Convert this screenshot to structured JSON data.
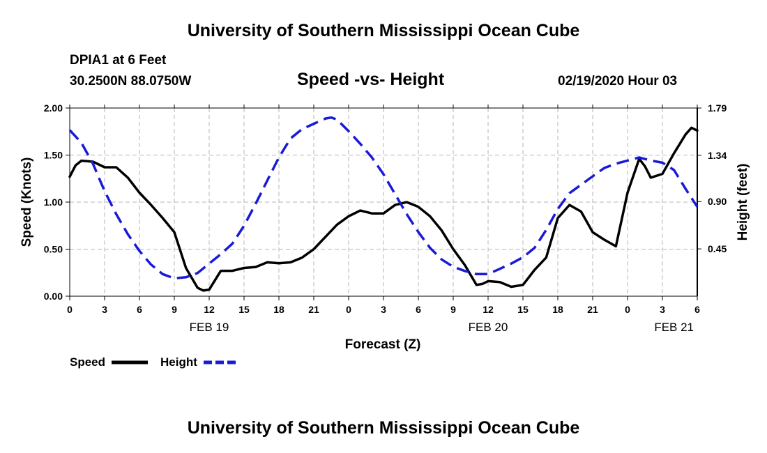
{
  "header": {
    "title": "University of Southern Mississippi Ocean Cube",
    "station": "DPIA1 at 6 Feet",
    "coords": "30.2500N 88.0750W",
    "chart_title": "Speed -vs- Height",
    "datetime": "02/19/2020 Hour 03"
  },
  "footer": {
    "title": "University of Southern Mississippi Ocean Cube"
  },
  "legend": {
    "speed_label": "Speed",
    "height_label": "Height"
  },
  "colors": {
    "speed": "#000000",
    "height": "#1a1ad6",
    "grid": "#b4b4b4"
  },
  "chart_data": {
    "type": "line",
    "title": "Speed -vs- Height",
    "xlabel": "Forecast (Z)",
    "ylabel": "Speed (Knots)",
    "y2label": "Height (feet)",
    "xlim": [
      0,
      54
    ],
    "ylim": [
      0,
      2.0
    ],
    "y2lim": [
      0,
      1.79
    ],
    "x_ticks": [
      0,
      3,
      6,
      9,
      12,
      15,
      18,
      21,
      24,
      27,
      30,
      33,
      36,
      39,
      42,
      45,
      48,
      51,
      54
    ],
    "x_tick_labels": [
      "0",
      "3",
      "6",
      "9",
      "12",
      "15",
      "18",
      "21",
      "0",
      "3",
      "6",
      "9",
      "12",
      "15",
      "18",
      "21",
      "0",
      "3",
      "6"
    ],
    "date_labels": [
      {
        "x": 12,
        "label": "FEB 19"
      },
      {
        "x": 36,
        "label": "FEB 20"
      },
      {
        "x": 52,
        "label": "FEB 21"
      }
    ],
    "y_ticks": [
      0,
      0.5,
      1.0,
      1.5,
      2.0
    ],
    "y_tick_labels": [
      "0.00",
      "0.50",
      "1.00",
      "1.50",
      "2.00"
    ],
    "y2_ticks": [
      0.45,
      0.9,
      1.34,
      1.79
    ],
    "y2_tick_labels": [
      "0.45",
      "0.90",
      "1.34",
      "1.79"
    ],
    "grid": true,
    "series": [
      {
        "name": "Speed",
        "axis": "left",
        "style": "solid",
        "x": [
          0,
          0.5,
          1,
          2,
          3,
          4,
          5,
          6,
          7,
          8,
          9,
          10,
          11,
          11.5,
          12,
          13,
          14,
          15,
          16,
          17,
          18,
          19,
          20,
          21,
          22,
          23,
          24,
          25,
          26,
          27,
          28,
          29,
          30,
          31,
          32,
          33,
          34,
          35,
          35.5,
          36,
          37,
          38,
          39,
          40,
          41,
          42,
          43,
          44,
          45,
          46,
          47,
          48,
          49,
          49.5,
          50,
          51,
          52,
          53,
          53.5,
          54
        ],
        "values": [
          1.27,
          1.39,
          1.44,
          1.43,
          1.37,
          1.37,
          1.26,
          1.1,
          0.97,
          0.83,
          0.68,
          0.3,
          0.09,
          0.06,
          0.07,
          0.27,
          0.27,
          0.3,
          0.31,
          0.36,
          0.35,
          0.36,
          0.41,
          0.5,
          0.63,
          0.76,
          0.85,
          0.91,
          0.88,
          0.88,
          0.97,
          1.0,
          0.95,
          0.85,
          0.7,
          0.5,
          0.33,
          0.12,
          0.13,
          0.16,
          0.15,
          0.1,
          0.12,
          0.28,
          0.41,
          0.83,
          0.97,
          0.9,
          0.68,
          0.6,
          0.53,
          1.1,
          1.46,
          1.38,
          1.26,
          1.3,
          1.52,
          1.72,
          1.79,
          1.76
        ]
      },
      {
        "name": "Height",
        "axis": "right",
        "style": "dashed",
        "x": [
          0,
          1,
          2,
          3,
          4,
          5,
          6,
          7,
          8,
          9,
          10,
          11,
          12,
          13,
          14,
          15,
          16,
          17,
          18,
          19,
          20,
          21,
          22,
          22.5,
          23,
          24,
          25,
          26,
          27,
          28,
          29,
          30,
          31,
          32,
          33,
          34,
          35,
          36,
          37,
          38,
          39,
          40,
          41,
          42,
          43,
          44,
          45,
          46,
          47,
          48,
          49,
          50,
          51,
          52,
          53,
          54
        ],
        "values": [
          1.58,
          1.46,
          1.26,
          1.0,
          0.78,
          0.59,
          0.43,
          0.3,
          0.21,
          0.17,
          0.18,
          0.22,
          0.31,
          0.4,
          0.5,
          0.67,
          0.88,
          1.1,
          1.32,
          1.5,
          1.59,
          1.64,
          1.69,
          1.7,
          1.68,
          1.57,
          1.45,
          1.32,
          1.16,
          0.97,
          0.78,
          0.61,
          0.46,
          0.35,
          0.28,
          0.24,
          0.21,
          0.21,
          0.26,
          0.31,
          0.37,
          0.46,
          0.63,
          0.83,
          0.98,
          1.06,
          1.14,
          1.22,
          1.26,
          1.29,
          1.32,
          1.29,
          1.27,
          1.2,
          1.02,
          0.85
        ]
      }
    ]
  }
}
